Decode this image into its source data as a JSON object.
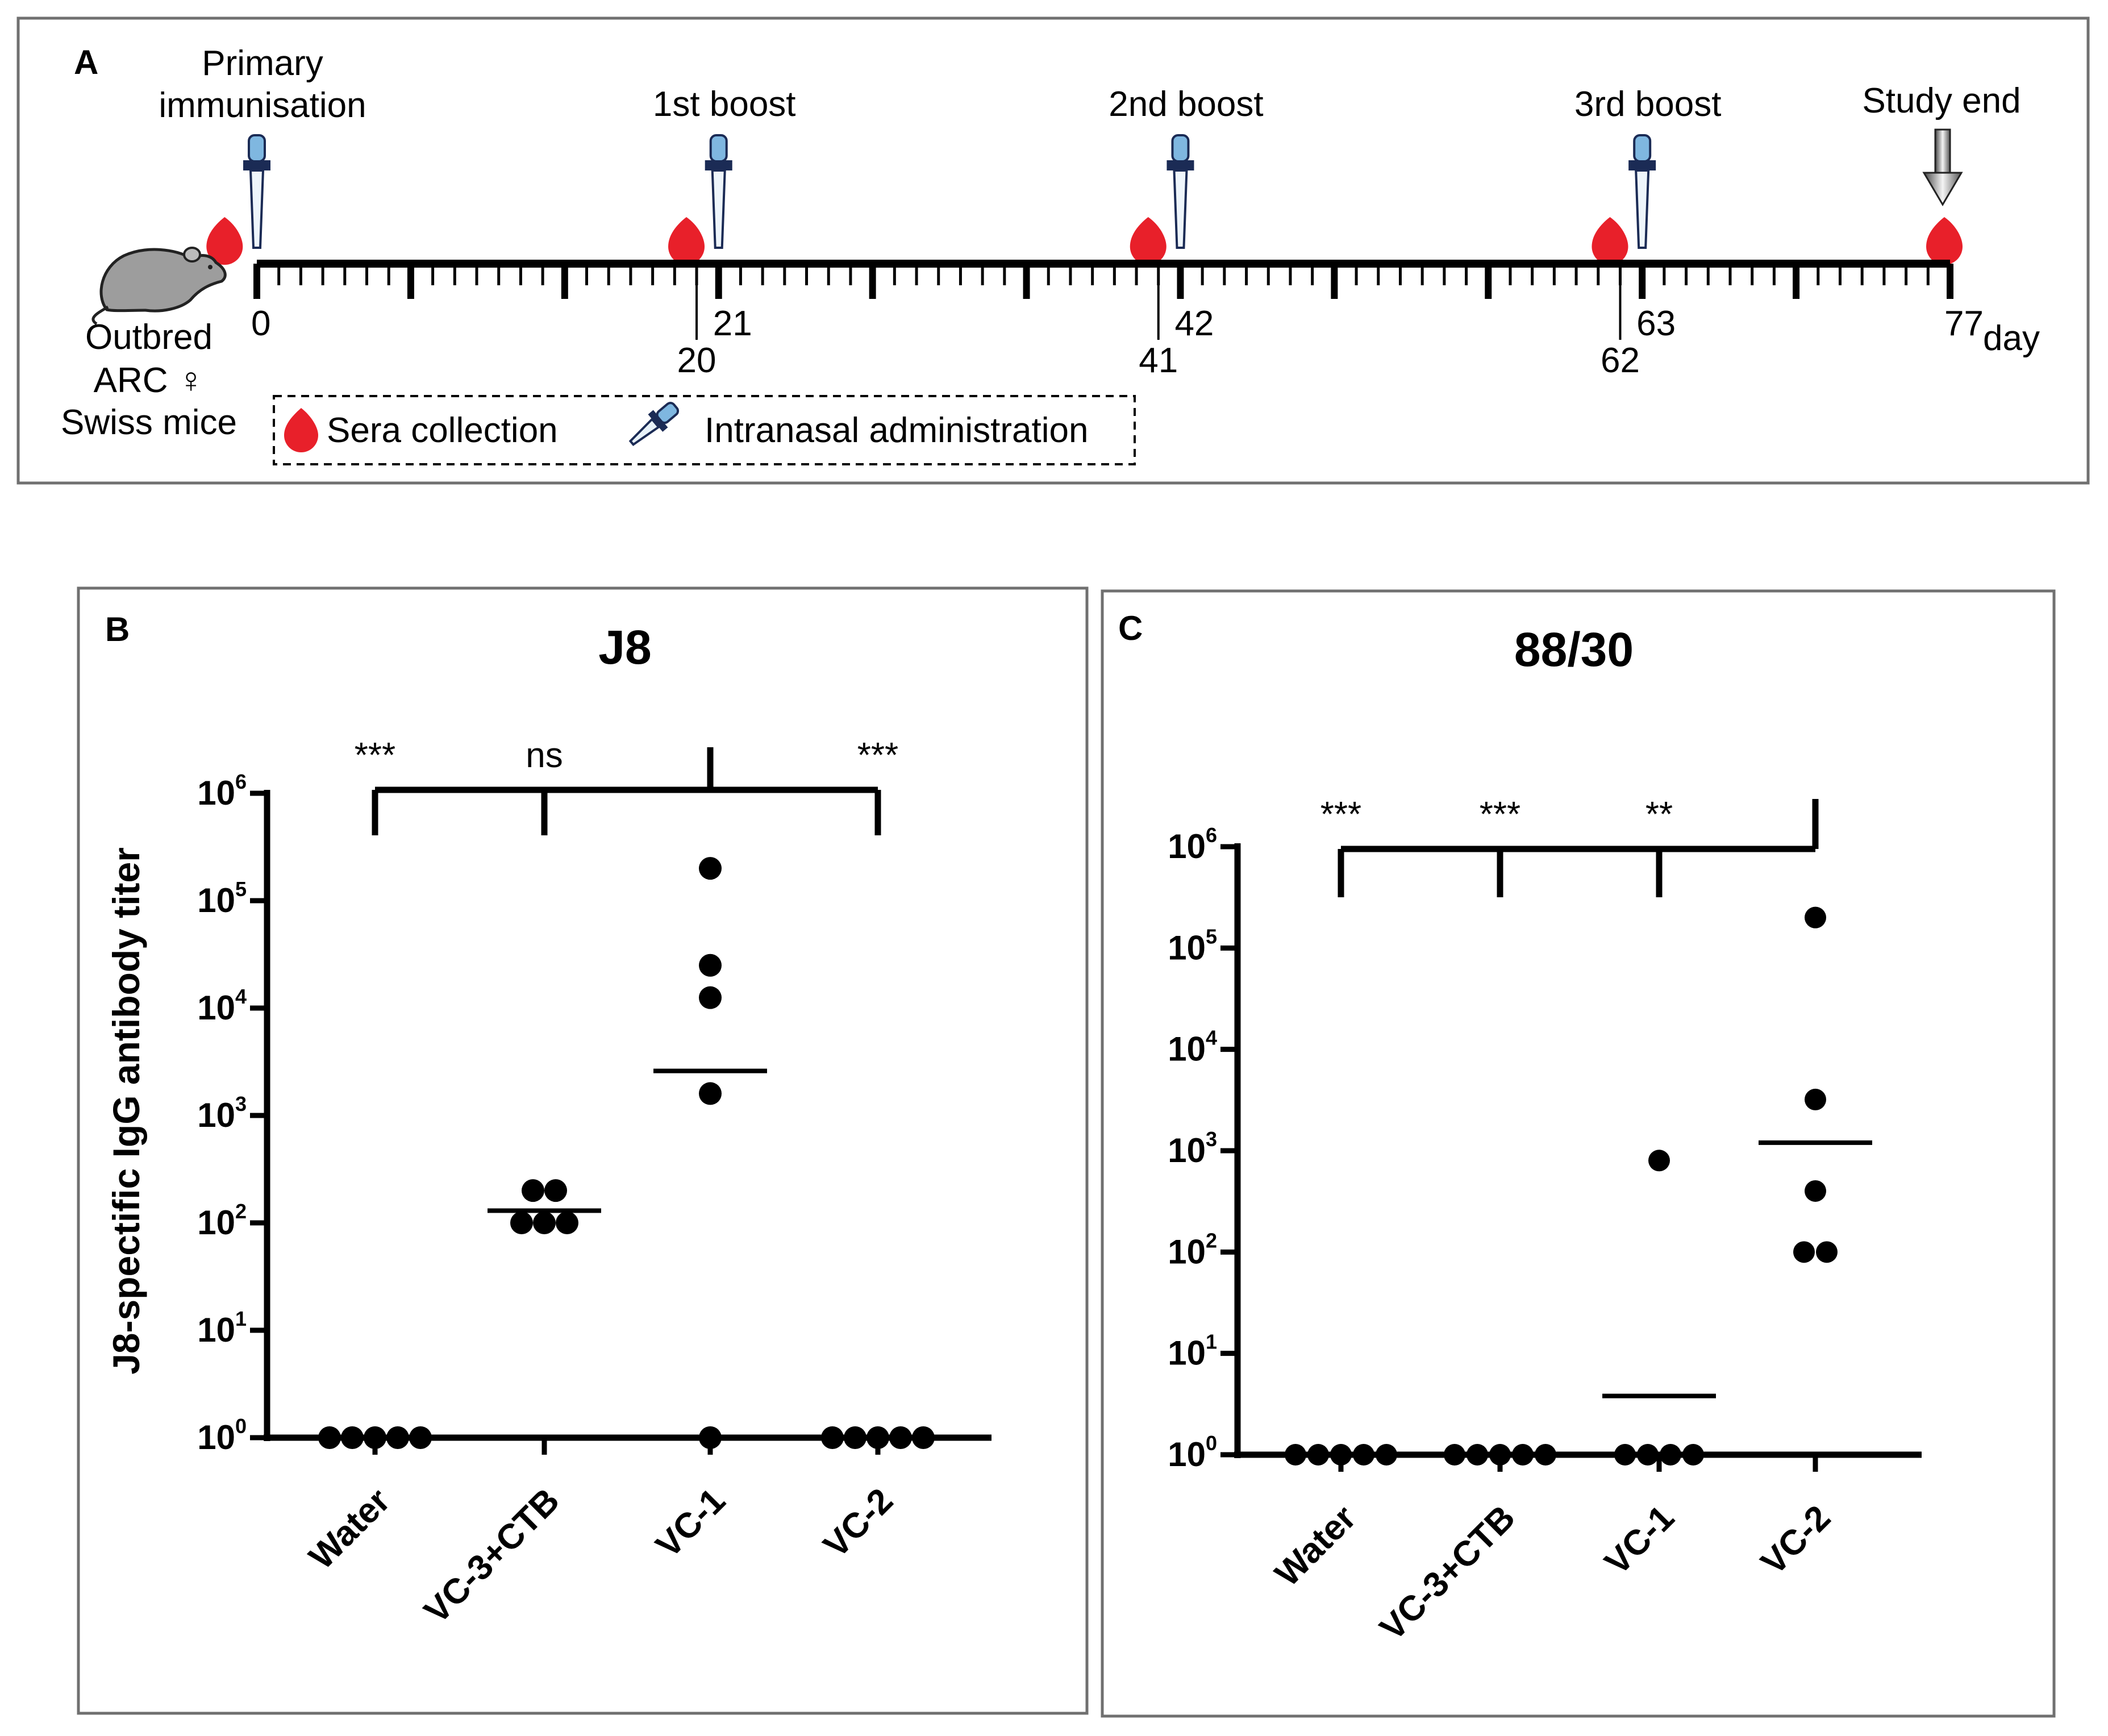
{
  "panelA": {
    "letter": "A",
    "events": [
      {
        "label_lines": [
          "Primary",
          "immunisation"
        ],
        "day": 0
      },
      {
        "label_lines": [
          "1st boost"
        ],
        "day": 21
      },
      {
        "label_lines": [
          "2nd boost"
        ],
        "day": 42
      },
      {
        "label_lines": [
          "3rd boost"
        ],
        "day": 63
      },
      {
        "label_lines": [
          "Study end"
        ],
        "day": 77
      }
    ],
    "axis": {
      "min_day": 0,
      "max_day": 77,
      "unit": "day"
    },
    "collection_days": [
      -1,
      20,
      41,
      62,
      77
    ],
    "admin_days": [
      0,
      21,
      42,
      63
    ],
    "major_ticks": [
      0,
      7,
      14,
      21,
      28,
      35,
      42,
      49,
      56,
      63,
      70,
      77
    ],
    "tick_labels_above": [
      {
        "text": "0",
        "day": 0
      },
      {
        "text": "21",
        "day": 21
      },
      {
        "text": "42",
        "day": 42
      },
      {
        "text": "63",
        "day": 63
      },
      {
        "text": "77",
        "day": 77
      }
    ],
    "tick_labels_below": [
      {
        "text": "20",
        "day": 20
      },
      {
        "text": "41",
        "day": 41
      },
      {
        "text": "62",
        "day": 62
      }
    ],
    "mouse_lines": [
      "Outbred",
      "ARC ♀",
      "Swiss mice"
    ],
    "legend": {
      "sera": "Sera collection",
      "admin": "Intranasal administration"
    }
  },
  "colors": {
    "blood": "#e8202a",
    "dropper": "#7fb7e0",
    "axis": "#000000",
    "frame": "#707070"
  },
  "chart_data": [
    {
      "panel": "B",
      "type": "scatter",
      "title": "J8",
      "ylabel": "J8-spectific IgG antibody titer",
      "yscale": "log",
      "ylim_exp": [
        0,
        6
      ],
      "ytick_exps": [
        "0",
        "1",
        "2",
        "3",
        "4",
        "5",
        "6"
      ],
      "categories": [
        "Water",
        "VC-3+CTB",
        "VC-1",
        "VC-2"
      ],
      "points": [
        [
          1,
          1,
          1,
          1,
          1
        ],
        [
          200,
          200,
          100,
          100,
          100
        ],
        [
          200000,
          25000,
          12500,
          1600,
          1
        ],
        [
          1,
          1,
          1,
          1,
          1
        ]
      ],
      "means": [
        null,
        130,
        2600,
        null
      ],
      "comparisons": {
        "reference": "VC-1",
        "labels": [
          "***",
          "ns",
          "",
          "***"
        ]
      }
    },
    {
      "panel": "C",
      "type": "scatter",
      "title": "88/30",
      "yscale": "log",
      "ylim_exp": [
        0,
        6
      ],
      "ytick_exps": [
        "0",
        "1",
        "2",
        "3",
        "4",
        "5",
        "6"
      ],
      "categories": [
        "Water",
        "VC-3+CTB",
        "VC-1",
        "VC-2"
      ],
      "points": [
        [
          1,
          1,
          1,
          1,
          1
        ],
        [
          1,
          1,
          1,
          1,
          1
        ],
        [
          800,
          1,
          1,
          1,
          1
        ],
        [
          200000,
          3200,
          400,
          100,
          100
        ]
      ],
      "means": [
        null,
        null,
        3.8,
        1200
      ],
      "comparisons": {
        "reference": "VC-2",
        "labels": [
          "***",
          "***",
          "**",
          ""
        ]
      }
    }
  ]
}
